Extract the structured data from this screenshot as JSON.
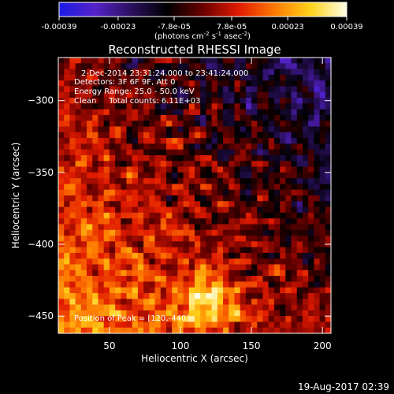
{
  "chart_data": {
    "type": "heatmap",
    "title": "Reconstructed RHESSI Image",
    "xlabel": "Heliocentric X (arcsec)",
    "ylabel": "Heliocentric Y (arcsec)",
    "xlim": [
      14,
      206
    ],
    "ylim": [
      -462,
      -270
    ],
    "x_ticks": [
      50,
      100,
      150,
      200
    ],
    "y_ticks": [
      -300,
      -350,
      -400,
      -450
    ],
    "colorbar": {
      "min": -0.00039,
      "max": 0.00039,
      "tick_values": [
        -0.00039,
        -0.00023,
        -7.8e-05,
        7.8e-05,
        0.00023,
        0.00039
      ],
      "tick_labels": [
        "-0.00039",
        "-0.00023",
        "-7.8e-05",
        "7.8e-05",
        "0.00023",
        "0.00039"
      ],
      "unit_label": "(photons cm",
      "unit_sup1": "-2",
      "unit_mid": " s",
      "unit_sup2": "-1",
      "unit_end": " asec",
      "unit_sup3": "-2",
      "unit_close": ")",
      "colormap": [
        "#1b1be6",
        "#5522c8",
        "#2b1060",
        "#000000",
        "#6a0000",
        "#e11a00",
        "#ff7a00",
        "#ffd21a",
        "#ffffe8"
      ]
    },
    "annotations": {
      "date_range": "2-Dec-2014 23:31:24.000 to 23:41:24.000",
      "detectors": "Detectors: 3F 6F 9F, Att 0",
      "energy": "Energy Range: 25.0 - 50.0 keV",
      "clean": "Clean     Total counts: 6.11E+03",
      "peak": "Position of Peak = [120,-440]"
    },
    "peak": [
      120,
      -440
    ],
    "grid_resolution": [
      48,
      48
    ]
  },
  "footer": {
    "timestamp": "19-Aug-2017 02:39"
  }
}
